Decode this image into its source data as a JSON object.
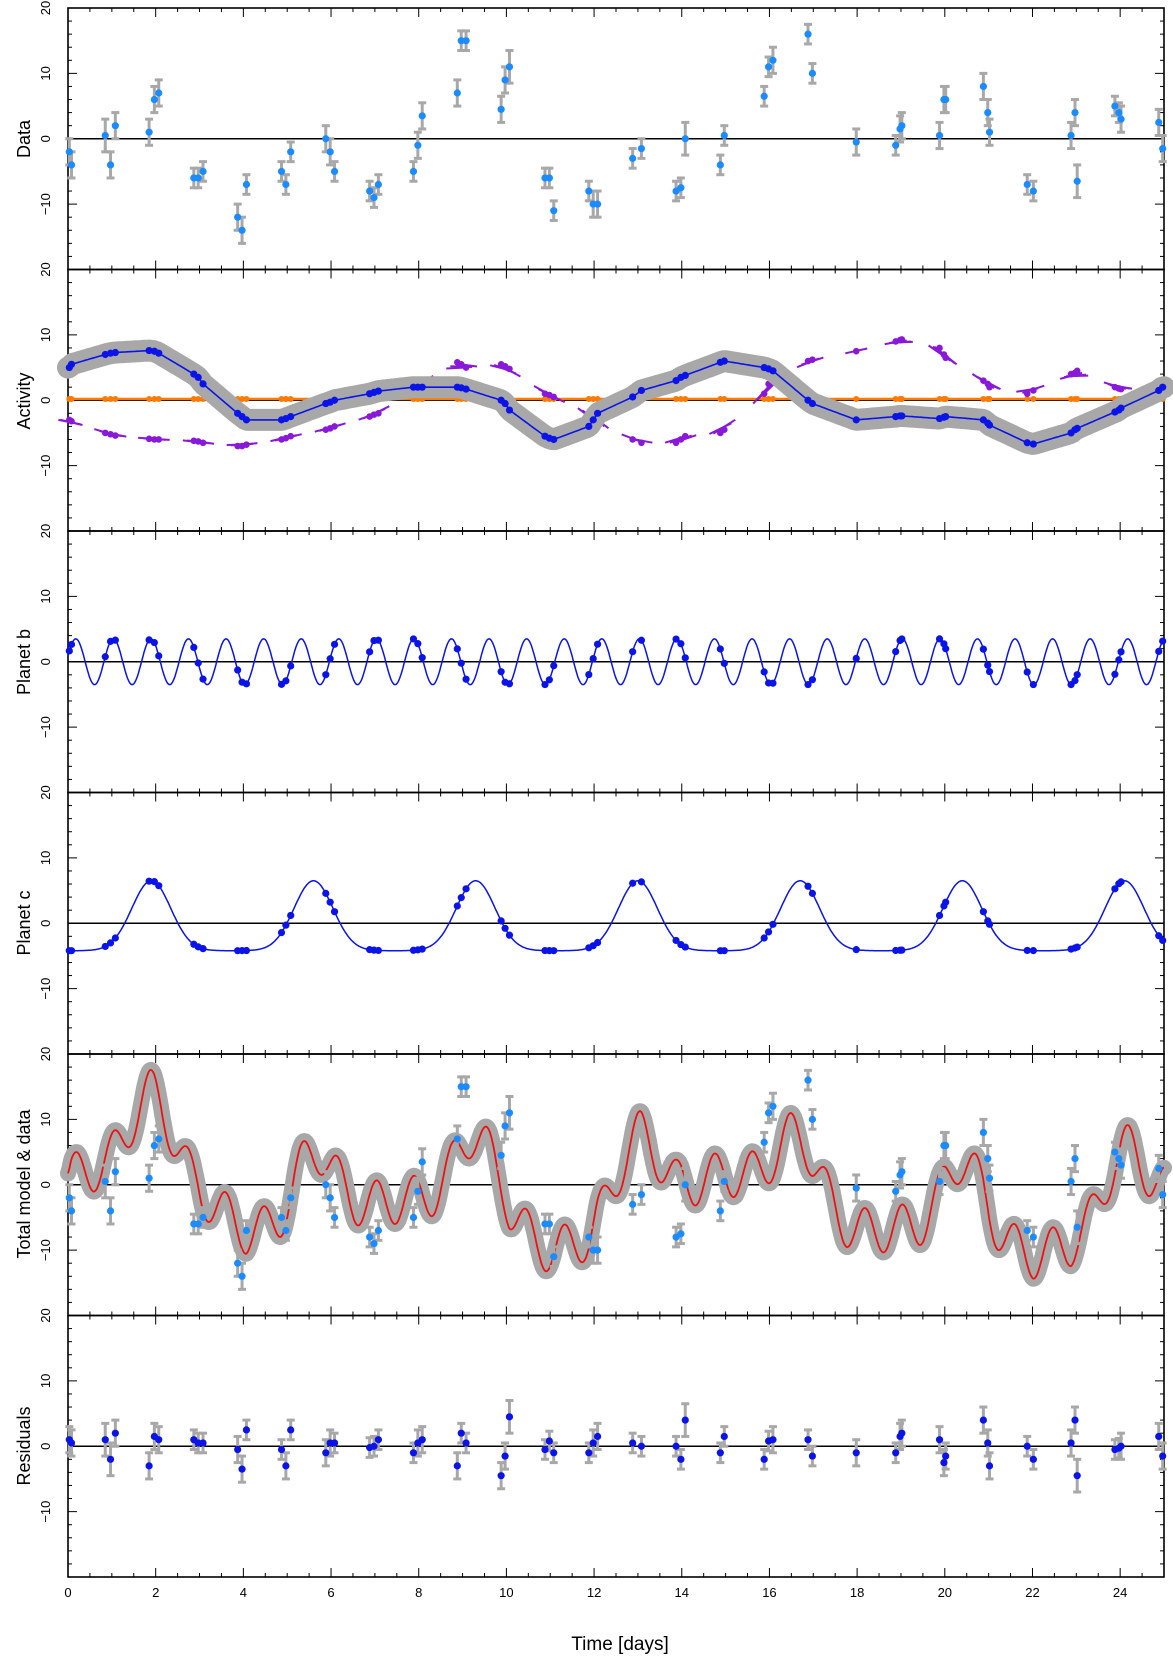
{
  "colors": {
    "data_point": "#1a8cff",
    "model_point": "#0a14e8",
    "model_line": "#0a14e8",
    "band": "#a8a8a8",
    "errorbar": "#a8a8a8",
    "orange": "#ff7a00",
    "purple": "#8a18d8",
    "total_model": "#ee1111",
    "zero_line": "#000000",
    "frame": "#000000"
  },
  "chart_data": {
    "type": "scatter",
    "xlabel": "Time [days]",
    "xlim": [
      0,
      25
    ],
    "x_ticks": [
      0,
      2,
      4,
      6,
      8,
      10,
      12,
      14,
      16,
      18,
      20,
      22,
      24
    ],
    "x_tick_labels": [
      "0",
      "2",
      "4",
      "6",
      "8",
      "10",
      "12",
      "14",
      "16",
      "18",
      "20",
      "22",
      "24"
    ],
    "y_ticks": [
      -10,
      0,
      10,
      20
    ],
    "y_tick_labels": [
      "−10",
      "0",
      "10",
      "20"
    ],
    "grid": false,
    "times": [
      0.03,
      0.08,
      0.85,
      0.97,
      1.08,
      1.85,
      1.97,
      2.07,
      2.87,
      2.97,
      3.08,
      3.87,
      3.97,
      4.07,
      4.87,
      4.97,
      5.08,
      5.88,
      5.98,
      6.08,
      6.88,
      6.98,
      7.08,
      7.88,
      7.98,
      8.08,
      8.88,
      8.97,
      9.08,
      9.88,
      9.97,
      10.07,
      10.88,
      10.98,
      11.08,
      11.88,
      11.98,
      12.08,
      12.88,
      13.08,
      13.87,
      13.98,
      14.08,
      14.88,
      14.97,
      15.88,
      15.98,
      16.08,
      16.88,
      16.98,
      17.98,
      18.88,
      18.98,
      19.02,
      19.88,
      19.98,
      20.02,
      20.88,
      20.98,
      21.02,
      21.88,
      22.02,
      22.88,
      22.97,
      23.02,
      23.88,
      23.97,
      24.02,
      24.88,
      24.97
    ],
    "panels": [
      {
        "ylabel": "Data",
        "ylim": [
          -20,
          20
        ],
        "series": [
          {
            "kind": "points_with_errorbars",
            "values": [
              -2,
              -4,
              0.5,
              -4,
              2,
              1,
              6,
              7,
              -6,
              -6,
              -5,
              -12,
              -14,
              -7,
              -5,
              -7,
              -2,
              0,
              -2,
              -5,
              -8,
              -9,
              -7,
              -5,
              -1,
              3.5,
              7,
              15,
              15,
              4.5,
              9,
              11,
              -6,
              -6,
              -11,
              -8,
              -10,
              -10,
              -3,
              -1.5,
              -8,
              -7.5,
              0,
              -4,
              0.5,
              6.5,
              11,
              12,
              16,
              10,
              -0.5,
              -1,
              1.5,
              2,
              0.5,
              6,
              6,
              8,
              4,
              1,
              -7,
              -8,
              0.5,
              4,
              -6.5,
              5,
              4,
              3,
              2.5,
              -1.5
            ],
            "errors": [
              2,
              2,
              2.5,
              2,
              2,
              2,
              2,
              2,
              1.5,
              1.5,
              1.5,
              2,
              2,
              1.5,
              1.5,
              1.5,
              1.5,
              2,
              2,
              1.5,
              1.5,
              1.5,
              1.5,
              1.5,
              2,
              2,
              2,
              1.5,
              1.5,
              2,
              2,
              2.5,
              1.5,
              1.5,
              1.5,
              1.5,
              2,
              2,
              1.5,
              1.5,
              1.5,
              1.5,
              2.5,
              1.5,
              1.5,
              1.5,
              1.5,
              2,
              1.5,
              1.5,
              2,
              1.5,
              2,
              2,
              2,
              2,
              2,
              2,
              2,
              2,
              1.5,
              1.5,
              2,
              2,
              2.5,
              1.5,
              1.5,
              2,
              2,
              2
            ]
          }
        ]
      },
      {
        "ylabel": "Activity",
        "ylim": [
          -20,
          20
        ],
        "series": [
          {
            "kind": "orange_trend",
            "values": [
              0.2,
              0.2,
              0.2,
              0.2,
              0.2,
              0.2,
              0.2,
              0.2,
              0.2,
              0.2,
              0.2,
              0.2,
              0.2,
              0.2,
              0.2,
              0.2,
              0.2,
              0.2,
              0.2,
              0.2,
              0.2,
              0.2,
              0.2,
              0.2,
              0.2,
              0.2,
              0.2,
              0.2,
              0.2,
              0.2,
              0.2,
              0.2,
              0.2,
              0.2,
              0.2,
              0.2,
              0.2,
              0.2,
              0.2,
              0.2,
              0.2,
              0.2,
              0.2,
              0.2,
              0.2,
              0.2,
              0.2,
              0.2,
              0.2,
              0.2,
              0.2,
              0.2,
              0.2,
              0.2,
              0.2,
              0.2,
              0.2,
              0.2,
              0.2,
              0.2,
              0.2,
              0.2,
              0.2,
              0.2,
              0.2,
              0.2,
              0.2,
              0.2,
              0.2,
              0.2
            ]
          },
          {
            "kind": "purple_segments",
            "values": [
              -3,
              -3.2,
              -5,
              -5.2,
              -5.4,
              -5.9,
              -6,
              -6,
              -6.2,
              -6.3,
              -6.5,
              -7,
              -7,
              -6.8,
              -6,
              -5.8,
              -5.5,
              -4.5,
              -4.3,
              -4,
              -2.5,
              -2.2,
              -2,
              1.5,
              2,
              2.8,
              5.8,
              5.5,
              5,
              5.5,
              5.2,
              4.8,
              1,
              0.8,
              0.5,
              -2,
              -2.5,
              -3.5,
              -6,
              -6.5,
              -6.5,
              -6,
              -5.5,
              -5,
              -4.5,
              1,
              2.5,
              3,
              6,
              6.2,
              7.5,
              9,
              9.2,
              9.3,
              8,
              7,
              6.5,
              3,
              2.5,
              2,
              1,
              1.5,
              4,
              4.2,
              4.5,
              2,
              1.8,
              1.7,
              2,
              2.1
            ]
          },
          {
            "kind": "gp_mean",
            "values": [
              5,
              5.5,
              7,
              7.2,
              7.3,
              7.6,
              7.5,
              7.2,
              4,
              3.5,
              2.5,
              -2,
              -2.5,
              -3,
              -3,
              -2.8,
              -2.5,
              -0.5,
              -0.3,
              0,
              1,
              1.2,
              1.4,
              2,
              2,
              2,
              2,
              1.9,
              1.7,
              0,
              -0.5,
              -1.5,
              -5.5,
              -5.8,
              -6,
              -4,
              -3,
              -2,
              0.5,
              1.5,
              3,
              3.5,
              3.8,
              5.8,
              6,
              5,
              4.8,
              4.5,
              0,
              -0.5,
              -3,
              -2.5,
              -2.4,
              -2.4,
              -2.8,
              -2.6,
              -2.5,
              -3,
              -3.5,
              -3.8,
              -6.5,
              -6.7,
              -5,
              -4.5,
              -4.3,
              -1.8,
              -1.5,
              -1.2,
              1.5,
              2
            ]
          }
        ]
      },
      {
        "ylabel": "Planet b",
        "ylim": [
          -20,
          20
        ],
        "series": [
          {
            "kind": "sinusoid",
            "amplitude": 3.5,
            "period": 0.857,
            "phase": 0.82
          }
        ]
      },
      {
        "ylabel": "Planet c",
        "ylim": [
          -20,
          20
        ],
        "series": [
          {
            "kind": "eccentric_orbit",
            "period": 3.7,
            "peak_time": 1.9,
            "max": 6.5,
            "min": -4.2
          }
        ]
      },
      {
        "ylabel": "Total model & data",
        "ylim": [
          -20,
          20
        ],
        "series": [
          {
            "kind": "total_model"
          },
          {
            "kind": "points_with_errorbars",
            "same_as_panel": 0
          }
        ]
      },
      {
        "ylabel": "Residuals",
        "ylim": [
          -20,
          20
        ],
        "series": [
          {
            "kind": "residual_points",
            "values": [
              1,
              0.5,
              1,
              -2,
              2,
              -3,
              1.5,
              1,
              1,
              0.5,
              0.5,
              -0.5,
              -3.5,
              2.5,
              -0.5,
              -3,
              2.5,
              -1,
              0.5,
              0.5,
              -0.2,
              0,
              1,
              -1,
              0.5,
              1,
              -3,
              2,
              0.5,
              -4.5,
              -1.5,
              4.5,
              -0.5,
              0.8,
              -1,
              -1,
              0.5,
              1.5,
              0.5,
              0,
              0,
              -2,
              4,
              -1,
              1.5,
              -2,
              0.8,
              1,
              1,
              -1.5,
              -1,
              -1,
              1.5,
              2,
              1,
              -2.5,
              -1.5,
              4,
              0.5,
              -3,
              0,
              -2,
              0.5,
              4,
              -4.5,
              -0.5,
              -0.3,
              0,
              1.5,
              -1.5
            ],
            "errors": [
              2,
              2,
              2.5,
              2.5,
              2,
              2,
              2,
              2,
              1.5,
              1.5,
              1.5,
              2,
              2,
              1.5,
              1.5,
              2,
              1.5,
              2,
              2,
              1.5,
              1.5,
              1.5,
              1.5,
              1.5,
              2,
              2,
              2,
              1.5,
              1.5,
              2,
              2,
              2.5,
              1.5,
              1.5,
              1.5,
              1.5,
              2,
              2,
              1.5,
              1.5,
              1.5,
              1.5,
              2.5,
              1.5,
              1.5,
              1.5,
              1.5,
              2,
              1.5,
              1.5,
              2,
              1.5,
              2,
              2,
              2,
              2,
              2,
              2,
              2,
              2,
              1.5,
              1.5,
              2,
              2,
              2.5,
              1.5,
              1.5,
              2,
              2,
              2
            ]
          }
        ]
      }
    ]
  }
}
